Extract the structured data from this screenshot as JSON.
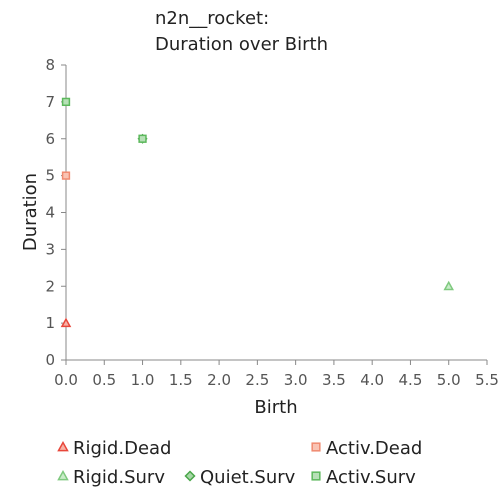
{
  "chart_data": {
    "type": "scatter",
    "title_lines": [
      "n2n__rocket:",
      "Duration over Birth"
    ],
    "xlabel": "Birth",
    "ylabel": "Duration",
    "xlim": [
      0,
      5.5
    ],
    "ylim": [
      0,
      8
    ],
    "x_ticks": [
      "0.0",
      "0.5",
      "1.0",
      "1.5",
      "2.0",
      "2.5",
      "3.0",
      "3.5",
      "4.0",
      "4.5",
      "5.0",
      "5.5"
    ],
    "y_ticks": [
      "0",
      "1",
      "2",
      "3",
      "4",
      "5",
      "6",
      "7",
      "8"
    ],
    "grid": false,
    "legend_position": "bottom",
    "series": [
      {
        "name": "Rigid.Dead",
        "marker": "triangle",
        "color": "#e8473b",
        "fill": "#f7b2a6",
        "points": [
          [
            0,
            1
          ]
        ]
      },
      {
        "name": "Activ.Dead",
        "marker": "square",
        "color": "#f08a70",
        "fill": "#f9c3b3",
        "points": [
          [
            0,
            5
          ]
        ]
      },
      {
        "name": "Rigid.Surv",
        "marker": "triangle",
        "color": "#7fc97f",
        "fill": "#c9ecc9",
        "points": [
          [
            5,
            2
          ]
        ]
      },
      {
        "name": "Quiet.Surv",
        "marker": "diamond",
        "color": "#4aa64a",
        "fill": "#a6d8a6",
        "points": [
          [
            1,
            6
          ]
        ]
      },
      {
        "name": "Activ.Surv",
        "marker": "square",
        "color": "#5cb85c",
        "fill": "#b6e0b6",
        "points": [
          [
            0,
            7
          ],
          [
            1,
            6
          ]
        ]
      }
    ]
  }
}
